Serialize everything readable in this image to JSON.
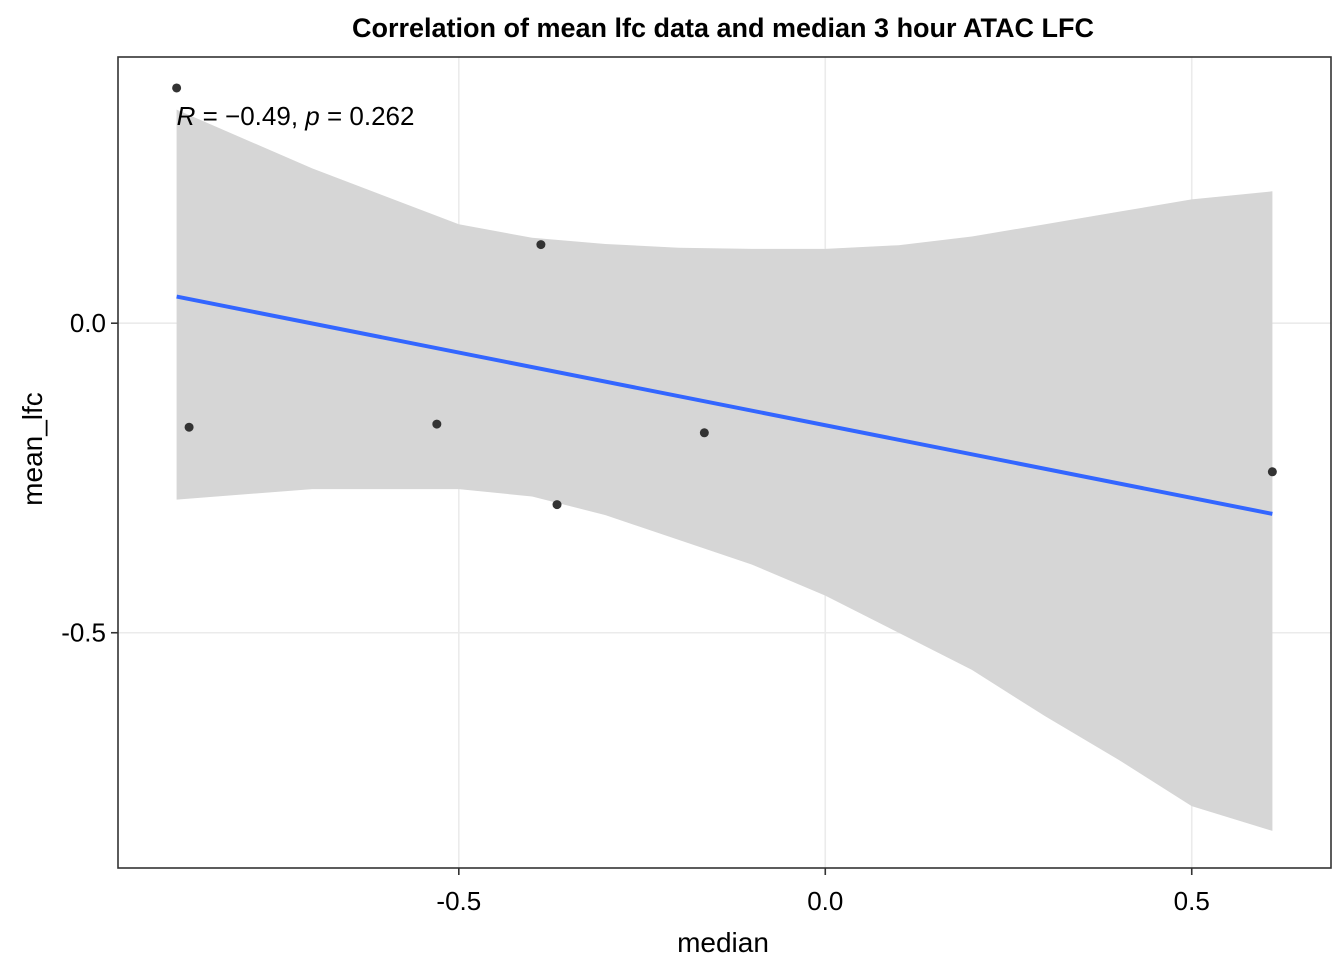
{
  "chart_data": {
    "type": "scatter",
    "title": "Correlation of mean lfc data and median 3 hour ATAC LFC",
    "xlabel": "median",
    "ylabel": "mean_lfc",
    "xlim": [
      -0.965,
      0.69
    ],
    "ylim": [
      -0.88,
      0.43
    ],
    "x_ticks": [
      -0.5,
      0.0,
      0.5
    ],
    "x_tick_labels": [
      "-0.5",
      "0.0",
      "0.5"
    ],
    "y_ticks": [
      -0.5,
      0.0
    ],
    "y_tick_labels": [
      "-0.5",
      "0.0"
    ],
    "grid": true,
    "points": [
      {
        "x": -0.885,
        "y": 0.38
      },
      {
        "x": -0.868,
        "y": -0.168
      },
      {
        "x": -0.53,
        "y": -0.163
      },
      {
        "x": -0.388,
        "y": 0.127
      },
      {
        "x": -0.366,
        "y": -0.293
      },
      {
        "x": -0.165,
        "y": -0.177
      },
      {
        "x": 0.61,
        "y": -0.24
      }
    ],
    "fit_line": {
      "x": [
        -0.885,
        0.61
      ],
      "y": [
        0.043,
        -0.308
      ],
      "color": "#3366FF"
    },
    "confidence_band": {
      "x": [
        -0.885,
        -0.7,
        -0.5,
        -0.4,
        -0.3,
        -0.2,
        -0.1,
        0.0,
        0.1,
        0.2,
        0.3,
        0.4,
        0.5,
        0.61
      ],
      "upper": [
        0.345,
        0.25,
        0.16,
        0.138,
        0.128,
        0.122,
        0.12,
        0.12,
        0.126,
        0.14,
        0.16,
        0.18,
        0.2,
        0.213
      ],
      "lower": [
        -0.285,
        -0.268,
        -0.268,
        -0.28,
        -0.31,
        -0.35,
        -0.39,
        -0.44,
        -0.5,
        -0.56,
        -0.635,
        -0.705,
        -0.78,
        -0.82
      ],
      "color": "#D6D6D6"
    },
    "annotation": {
      "r_symbol": "R",
      "r_text": " = −0.49, ",
      "p_symbol": "p",
      "p_text": " = 0.262",
      "x": -0.885,
      "y": 0.335
    },
    "colors": {
      "points": "#333333",
      "grid": "#EBEBEB",
      "panel_border": "#333333"
    }
  }
}
